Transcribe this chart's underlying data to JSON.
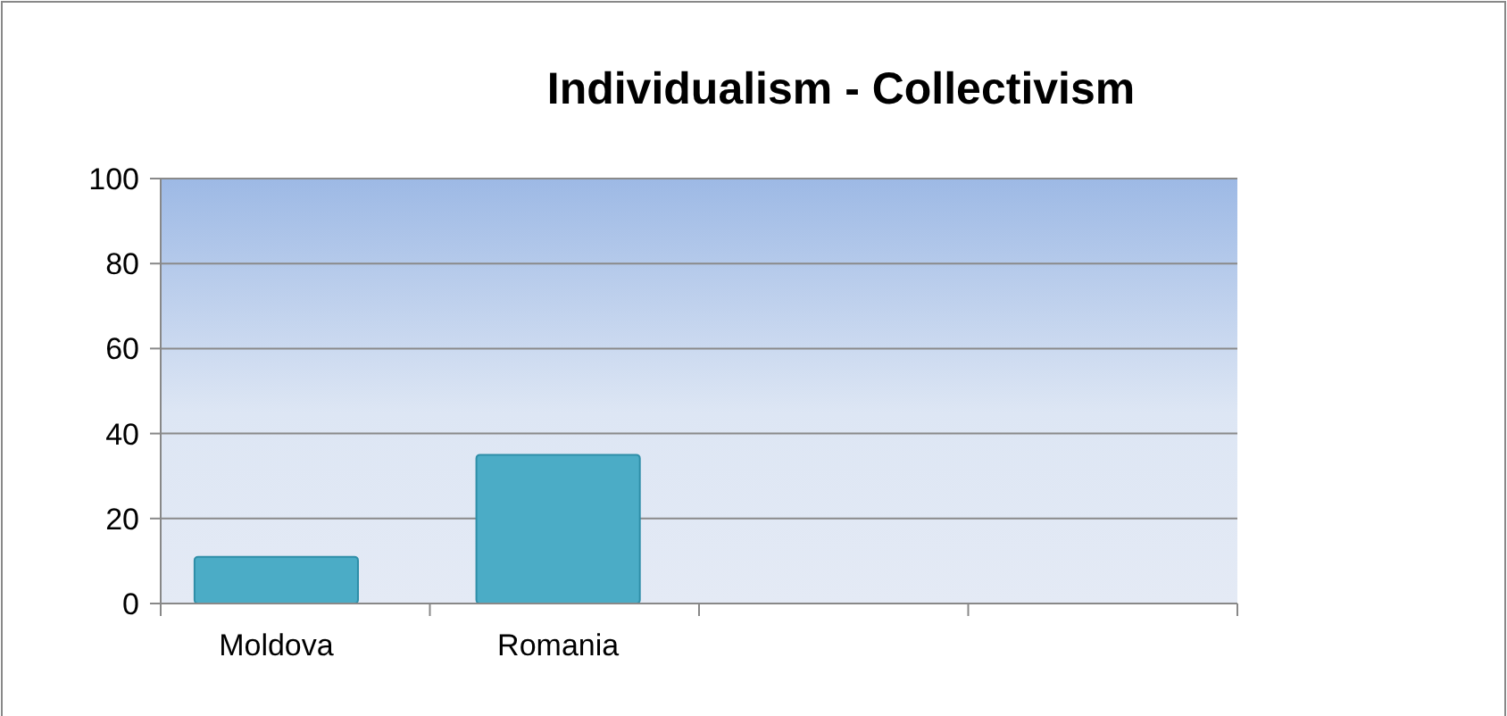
{
  "chart_data": {
    "type": "bar",
    "title": "Individualism - Collectivism",
    "categories": [
      "Moldova",
      "Romania",
      null,
      null
    ],
    "values": [
      11,
      35,
      null,
      null
    ],
    "color": "#4bacc6",
    "ylim": [
      0,
      100
    ],
    "yticks": [
      0,
      20,
      40,
      60,
      80,
      100
    ],
    "grid": "y"
  }
}
